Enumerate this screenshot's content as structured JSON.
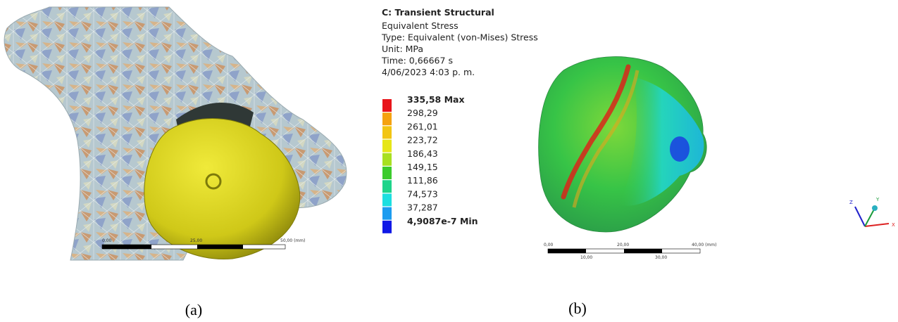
{
  "figure": {
    "panel_a": {
      "scale_bar": {
        "labels": [
          "0,00",
          "25,00",
          "50,00 (mm)"
        ]
      },
      "caption": "(a)"
    },
    "panel_b": {
      "header": {
        "title": "C: Transient Structural",
        "lines": [
          "Equivalent Stress",
          "Type: Equivalent (von-Mises) Stress",
          "Unit: MPa",
          "Time: 0,66667 s",
          "4/06/2023 4:03 p. m."
        ]
      },
      "legend": [
        {
          "label": "335,58 Max",
          "color": "#e8151b"
        },
        {
          "label": "298,29",
          "color": "#f5a20f"
        },
        {
          "label": "261,01",
          "color": "#f2c512"
        },
        {
          "label": "223,72",
          "color": "#e6e617"
        },
        {
          "label": "186,43",
          "color": "#a8e021"
        },
        {
          "label": "149,15",
          "color": "#3ccb2d"
        },
        {
          "label": "111,86",
          "color": "#1ed48a"
        },
        {
          "label": "74,573",
          "color": "#1cdfe0"
        },
        {
          "label": "37,287",
          "color": "#1c9cf0"
        },
        {
          "label": "4,9087e-7 Min",
          "color": "#1018e6"
        }
      ],
      "scale_bar": {
        "labels": [
          "0,00",
          "20,00",
          "40,00 (mm)",
          "10,00",
          "30,00"
        ]
      },
      "triad": {
        "labels": [
          "Z",
          "Y",
          "X"
        ]
      },
      "caption": "(b)"
    }
  }
}
